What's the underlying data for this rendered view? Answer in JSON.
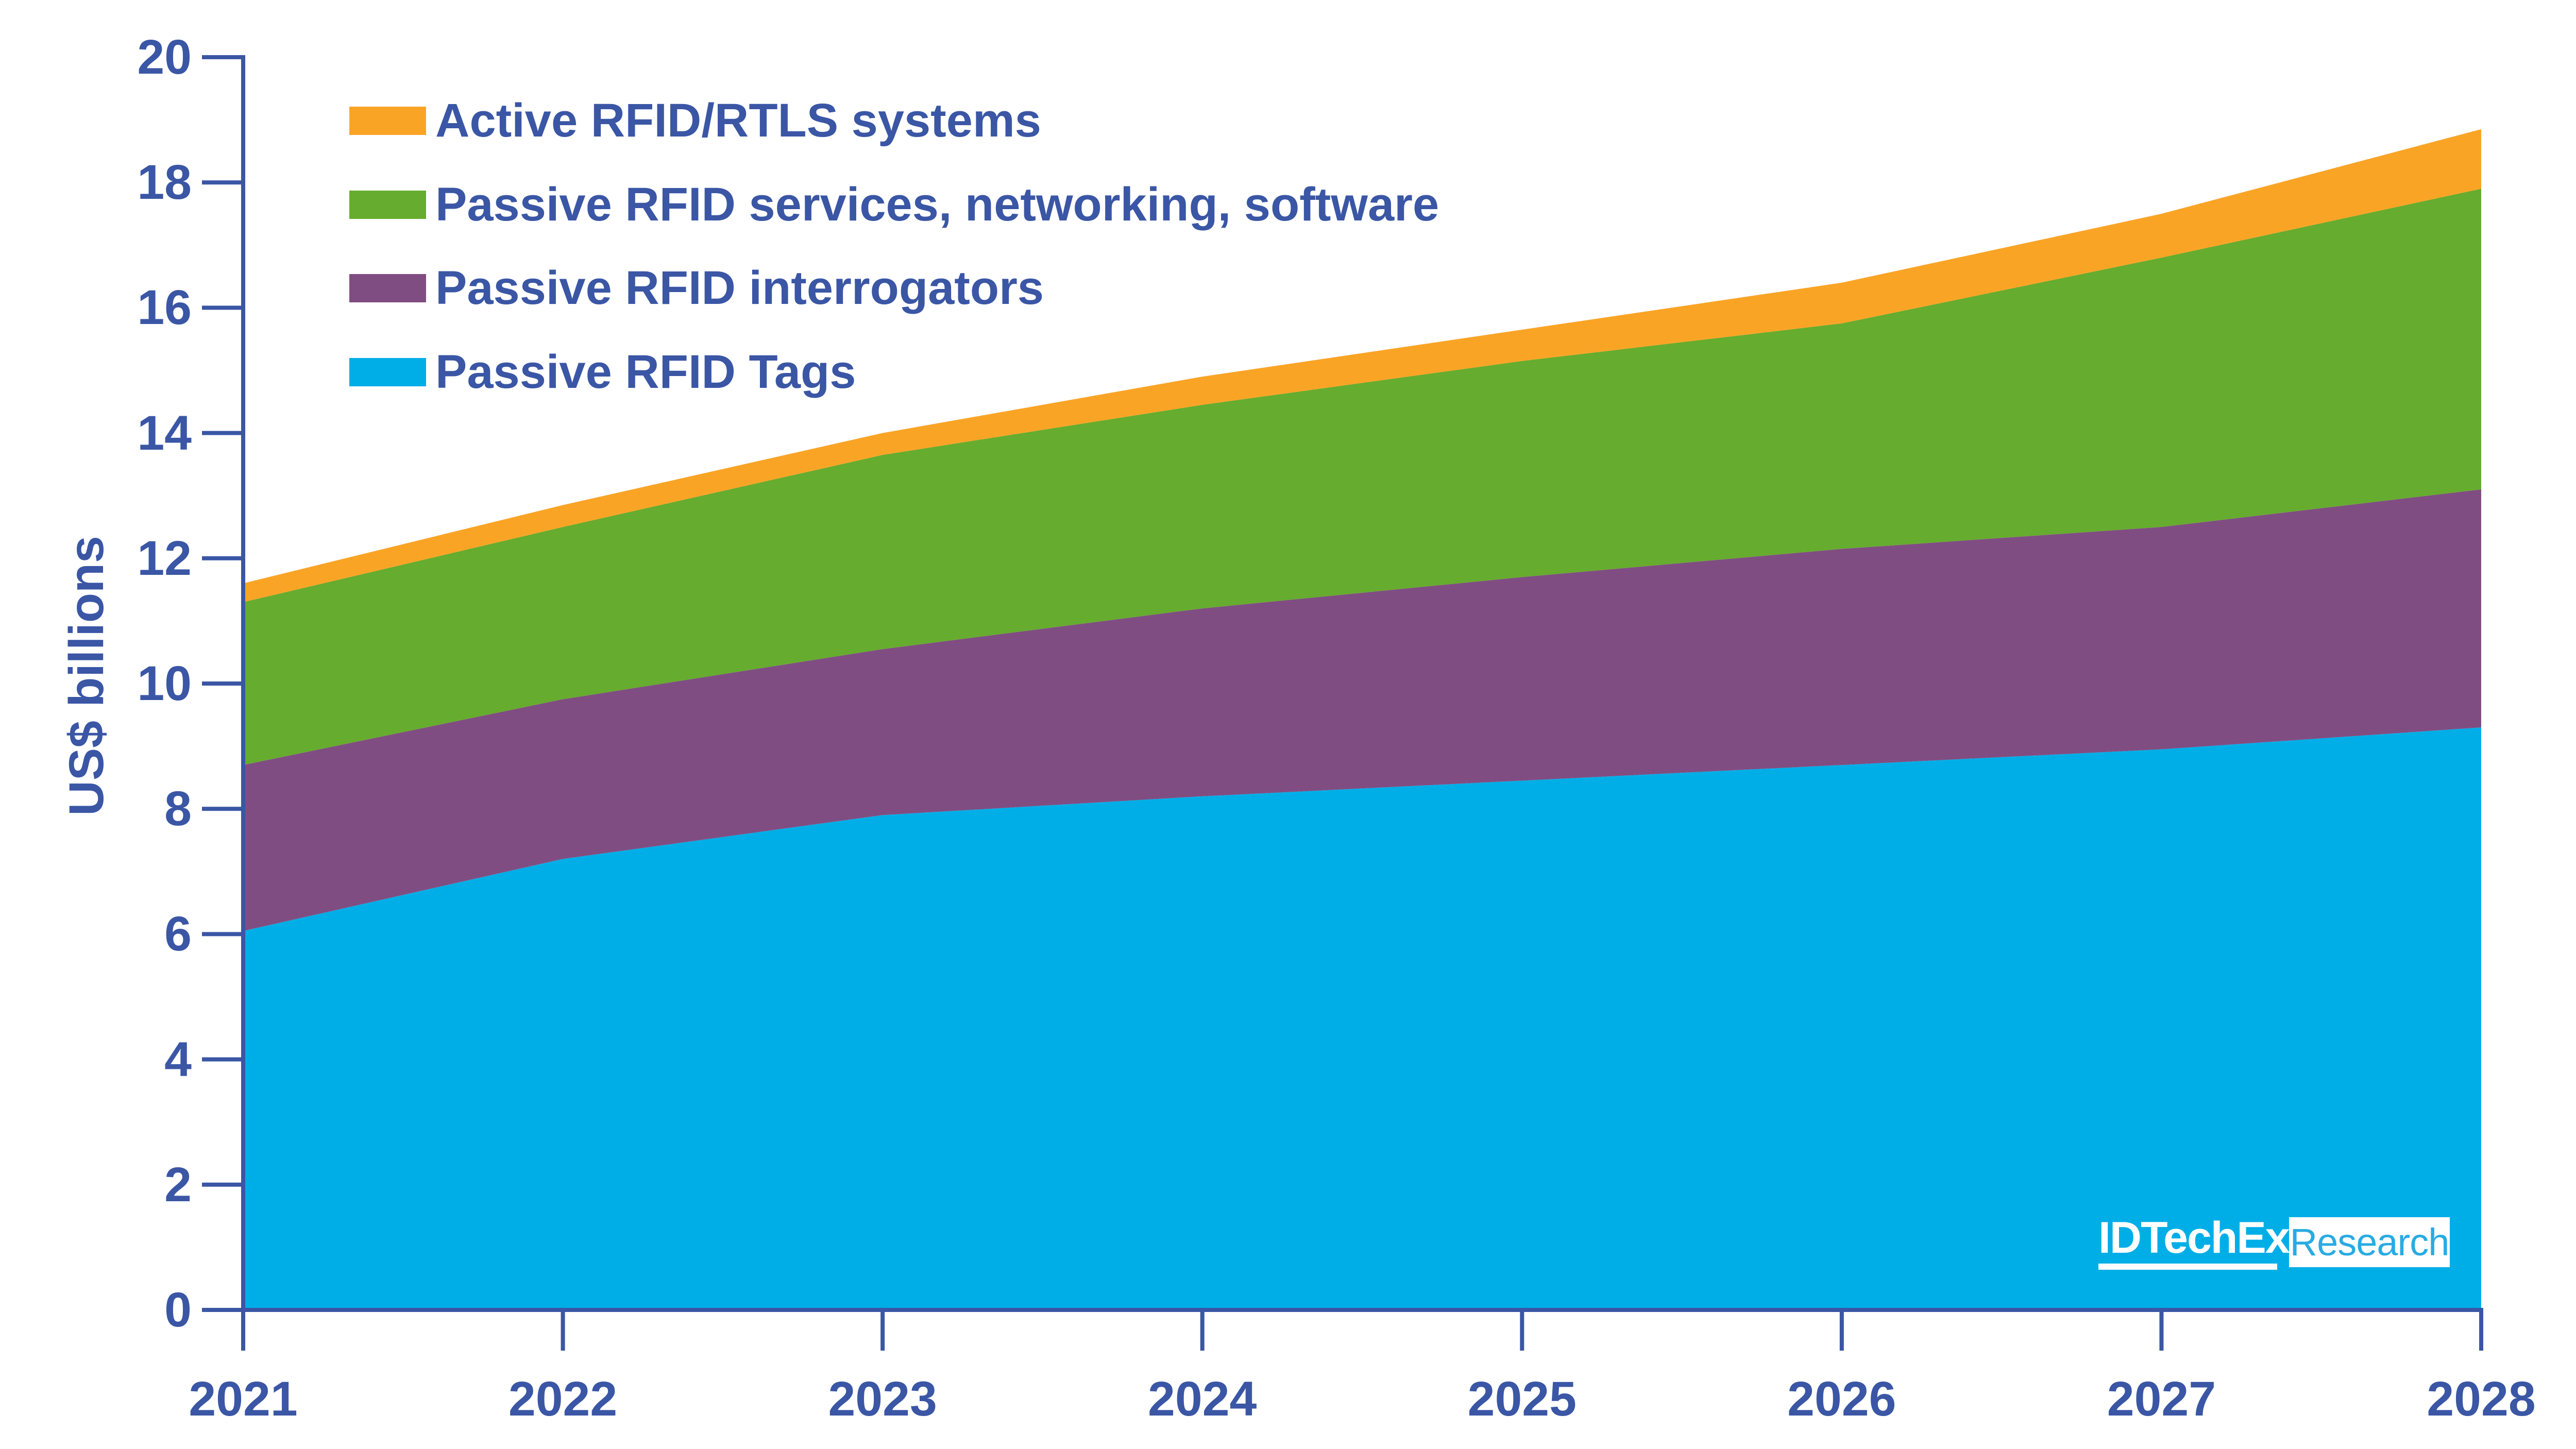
{
  "chart_data": {
    "type": "area",
    "stacked": true,
    "title": "",
    "xlabel": "",
    "ylabel": "US$ billions",
    "ylim": [
      0,
      20
    ],
    "y_ticks": [
      0,
      2,
      4,
      6,
      8,
      10,
      12,
      14,
      16,
      18,
      20
    ],
    "categories": [
      "2021",
      "2022",
      "2023",
      "2024",
      "2025",
      "2026",
      "2027",
      "2028"
    ],
    "grid": false,
    "legend_position": "top-left",
    "series": [
      {
        "name": "Passive RFID Tags",
        "color": "#00AEE7",
        "values": [
          6.05,
          7.2,
          7.9,
          8.2,
          8.45,
          8.7,
          8.95,
          9.3
        ]
      },
      {
        "name": "Passive RFID interrogators",
        "color": "#804D82",
        "values": [
          2.65,
          2.55,
          2.65,
          3.0,
          3.25,
          3.45,
          3.55,
          3.8
        ]
      },
      {
        "name": "Passive RFID services, networking, software",
        "color": "#66AC2E",
        "values": [
          2.6,
          2.75,
          3.1,
          3.25,
          3.45,
          3.6,
          4.3,
          4.8
        ]
      },
      {
        "name": "Active RFID/RTLS systems",
        "color": "#FAA426",
        "values": [
          0.3,
          0.35,
          0.35,
          0.45,
          0.5,
          0.65,
          0.7,
          0.95
        ]
      }
    ],
    "cumulative_tops_usd_billions": {
      "passive_rfid_tags": [
        6.05,
        7.2,
        7.9,
        8.2,
        8.45,
        8.7,
        8.95,
        9.3
      ],
      "passive_rfid_interrogators": [
        8.7,
        9.75,
        10.55,
        11.2,
        11.7,
        12.15,
        12.5,
        13.1
      ],
      "passive_rfid_services": [
        11.3,
        12.5,
        13.65,
        14.45,
        15.15,
        15.75,
        16.8,
        17.9
      ],
      "active_rfid_rtls_total": [
        11.6,
        12.85,
        14.0,
        14.9,
        15.65,
        16.4,
        17.5,
        18.85
      ]
    }
  },
  "legend": {
    "items": [
      {
        "label": "Active RFID/RTLS systems",
        "color": "#FAA426"
      },
      {
        "label": "Passive RFID services, networking, software",
        "color": "#66AC2E"
      },
      {
        "label": "Passive RFID interrogators",
        "color": "#804D82"
      },
      {
        "label": "Passive RFID Tags",
        "color": "#00AEE7"
      }
    ]
  },
  "logo": {
    "brand": "IDTechEx",
    "suffix": "Research"
  },
  "colors": {
    "axis": "#3A56A5",
    "label_text": "#3A56A5",
    "logo_cyan": "#29ABE2",
    "background": "#ffffff"
  }
}
